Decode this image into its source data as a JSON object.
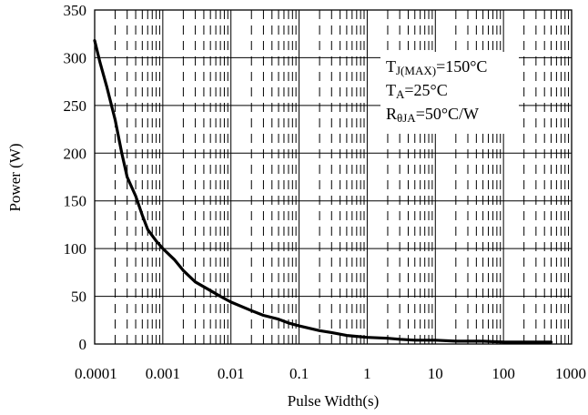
{
  "chart_data": {
    "type": "line",
    "xlabel": "Pulse Width(s)",
    "ylabel": "Power (W)",
    "xscale": "log",
    "xlim": [
      0.0001,
      1000
    ],
    "ylim": [
      0,
      350
    ],
    "x_ticks": [
      "0.0001",
      "0.001",
      "0.01",
      "0.1",
      "1",
      "10",
      "100",
      "1000"
    ],
    "y_ticks": [
      "0",
      "50",
      "100",
      "150",
      "200",
      "250",
      "300",
      "350"
    ],
    "grid": true,
    "legend_placement": "top-right",
    "annotations": [
      {
        "main": "T",
        "sub": "J(MAX)",
        "rest": "=150°C"
      },
      {
        "main": "T",
        "sub": "A",
        "rest": "=25°C"
      },
      {
        "main": "R",
        "sub": "θJA",
        "rest": "=50°C/W"
      }
    ],
    "series": [
      {
        "x": [
          0.0001,
          0.00012,
          0.00015,
          0.0002,
          0.00025,
          0.0003,
          0.0004,
          0.0005,
          0.0006,
          0.0008,
          0.001,
          0.0015,
          0.002,
          0.003,
          0.005,
          0.007,
          0.01,
          0.02,
          0.03,
          0.05,
          0.07,
          0.1,
          0.2,
          0.3,
          0.5,
          0.7,
          1,
          2,
          3,
          5,
          10,
          20,
          50,
          100,
          200,
          500
        ],
        "y": [
          318,
          295,
          270,
          235,
          200,
          175,
          155,
          135,
          120,
          108,
          100,
          88,
          77,
          65,
          56,
          50,
          44,
          35,
          30,
          26,
          22,
          19,
          14,
          12,
          9,
          8,
          7,
          6,
          5,
          4,
          4,
          3,
          3,
          2,
          2,
          2
        ]
      }
    ],
    "colors": {
      "line": "#000000",
      "grid": "#000000",
      "background": "#ffffff"
    }
  }
}
